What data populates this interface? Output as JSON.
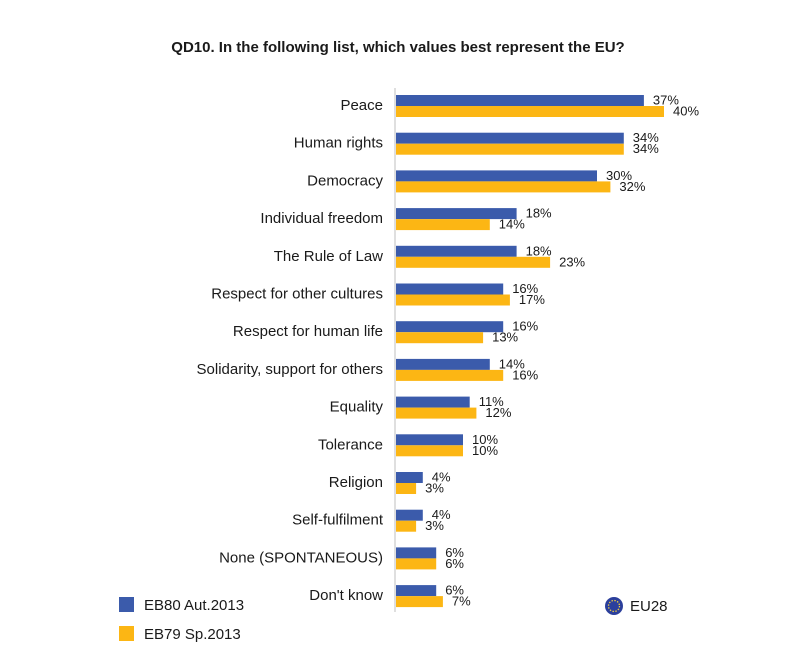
{
  "chart_data": {
    "type": "bar",
    "orientation": "horizontal",
    "title": "QD10. In the following list, which values best represent the EU?",
    "categories": [
      "Peace",
      "Human rights",
      "Democracy",
      "Individual freedom",
      "The Rule of Law",
      "Respect for other cultures",
      "Respect for human life",
      "Solidarity, support for others",
      "Equality",
      "Tolerance",
      "Religion",
      "Self-fulfilment",
      "None (SPONTANEOUS)",
      "Don't know"
    ],
    "series": [
      {
        "name": "EB80 Aut.2013",
        "color": "#3b5bab",
        "values": [
          37,
          34,
          30,
          18,
          18,
          16,
          16,
          14,
          11,
          10,
          4,
          4,
          6,
          6
        ]
      },
      {
        "name": "EB79 Sp.2013",
        "color": "#fcb614",
        "values": [
          40,
          34,
          32,
          14,
          23,
          17,
          13,
          16,
          12,
          10,
          3,
          3,
          6,
          7
        ]
      }
    ],
    "value_suffix": "%",
    "xlim": [
      0,
      45
    ],
    "grid": false,
    "legend_position": "bottom-left",
    "scope_label": "EU28",
    "scope_icon": "eu-flag-icon"
  }
}
